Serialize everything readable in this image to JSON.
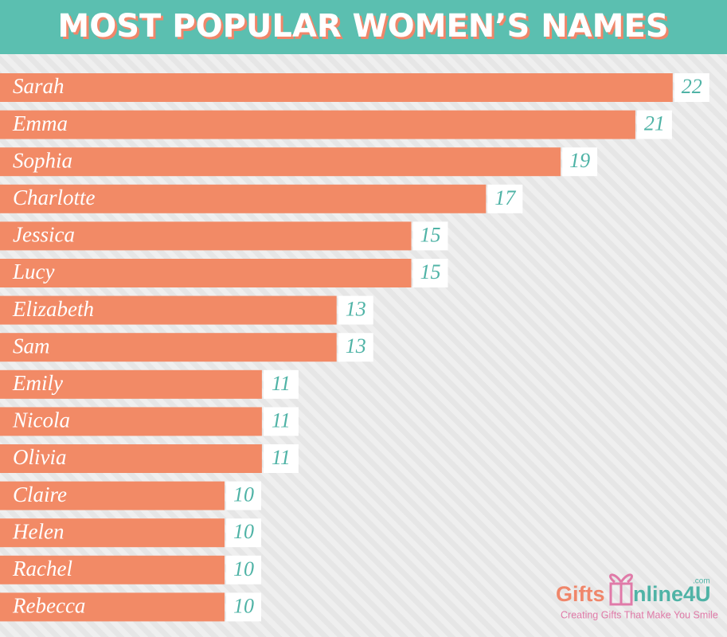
{
  "chart_data": {
    "type": "bar",
    "orientation": "horizontal",
    "title": "MOST POPULAR WOMEN’S NAMES",
    "categories": [
      "Sarah",
      "Emma",
      "Sophia",
      "Charlotte",
      "Jessica",
      "Lucy",
      "Elizabeth",
      "Sam",
      "Emily",
      "Nicola",
      "Olivia",
      "Claire",
      "Helen",
      "Rachel",
      "Rebecca"
    ],
    "values": [
      22,
      21,
      19,
      17,
      15,
      15,
      13,
      13,
      11,
      11,
      11,
      10,
      10,
      10,
      10
    ],
    "color": "#f28a66"
  },
  "logo": {
    "brand_left": "Gifts",
    "brand_right": "nline4U",
    "domain": ".com",
    "tagline": "Creating Gifts That Make You Smile"
  }
}
